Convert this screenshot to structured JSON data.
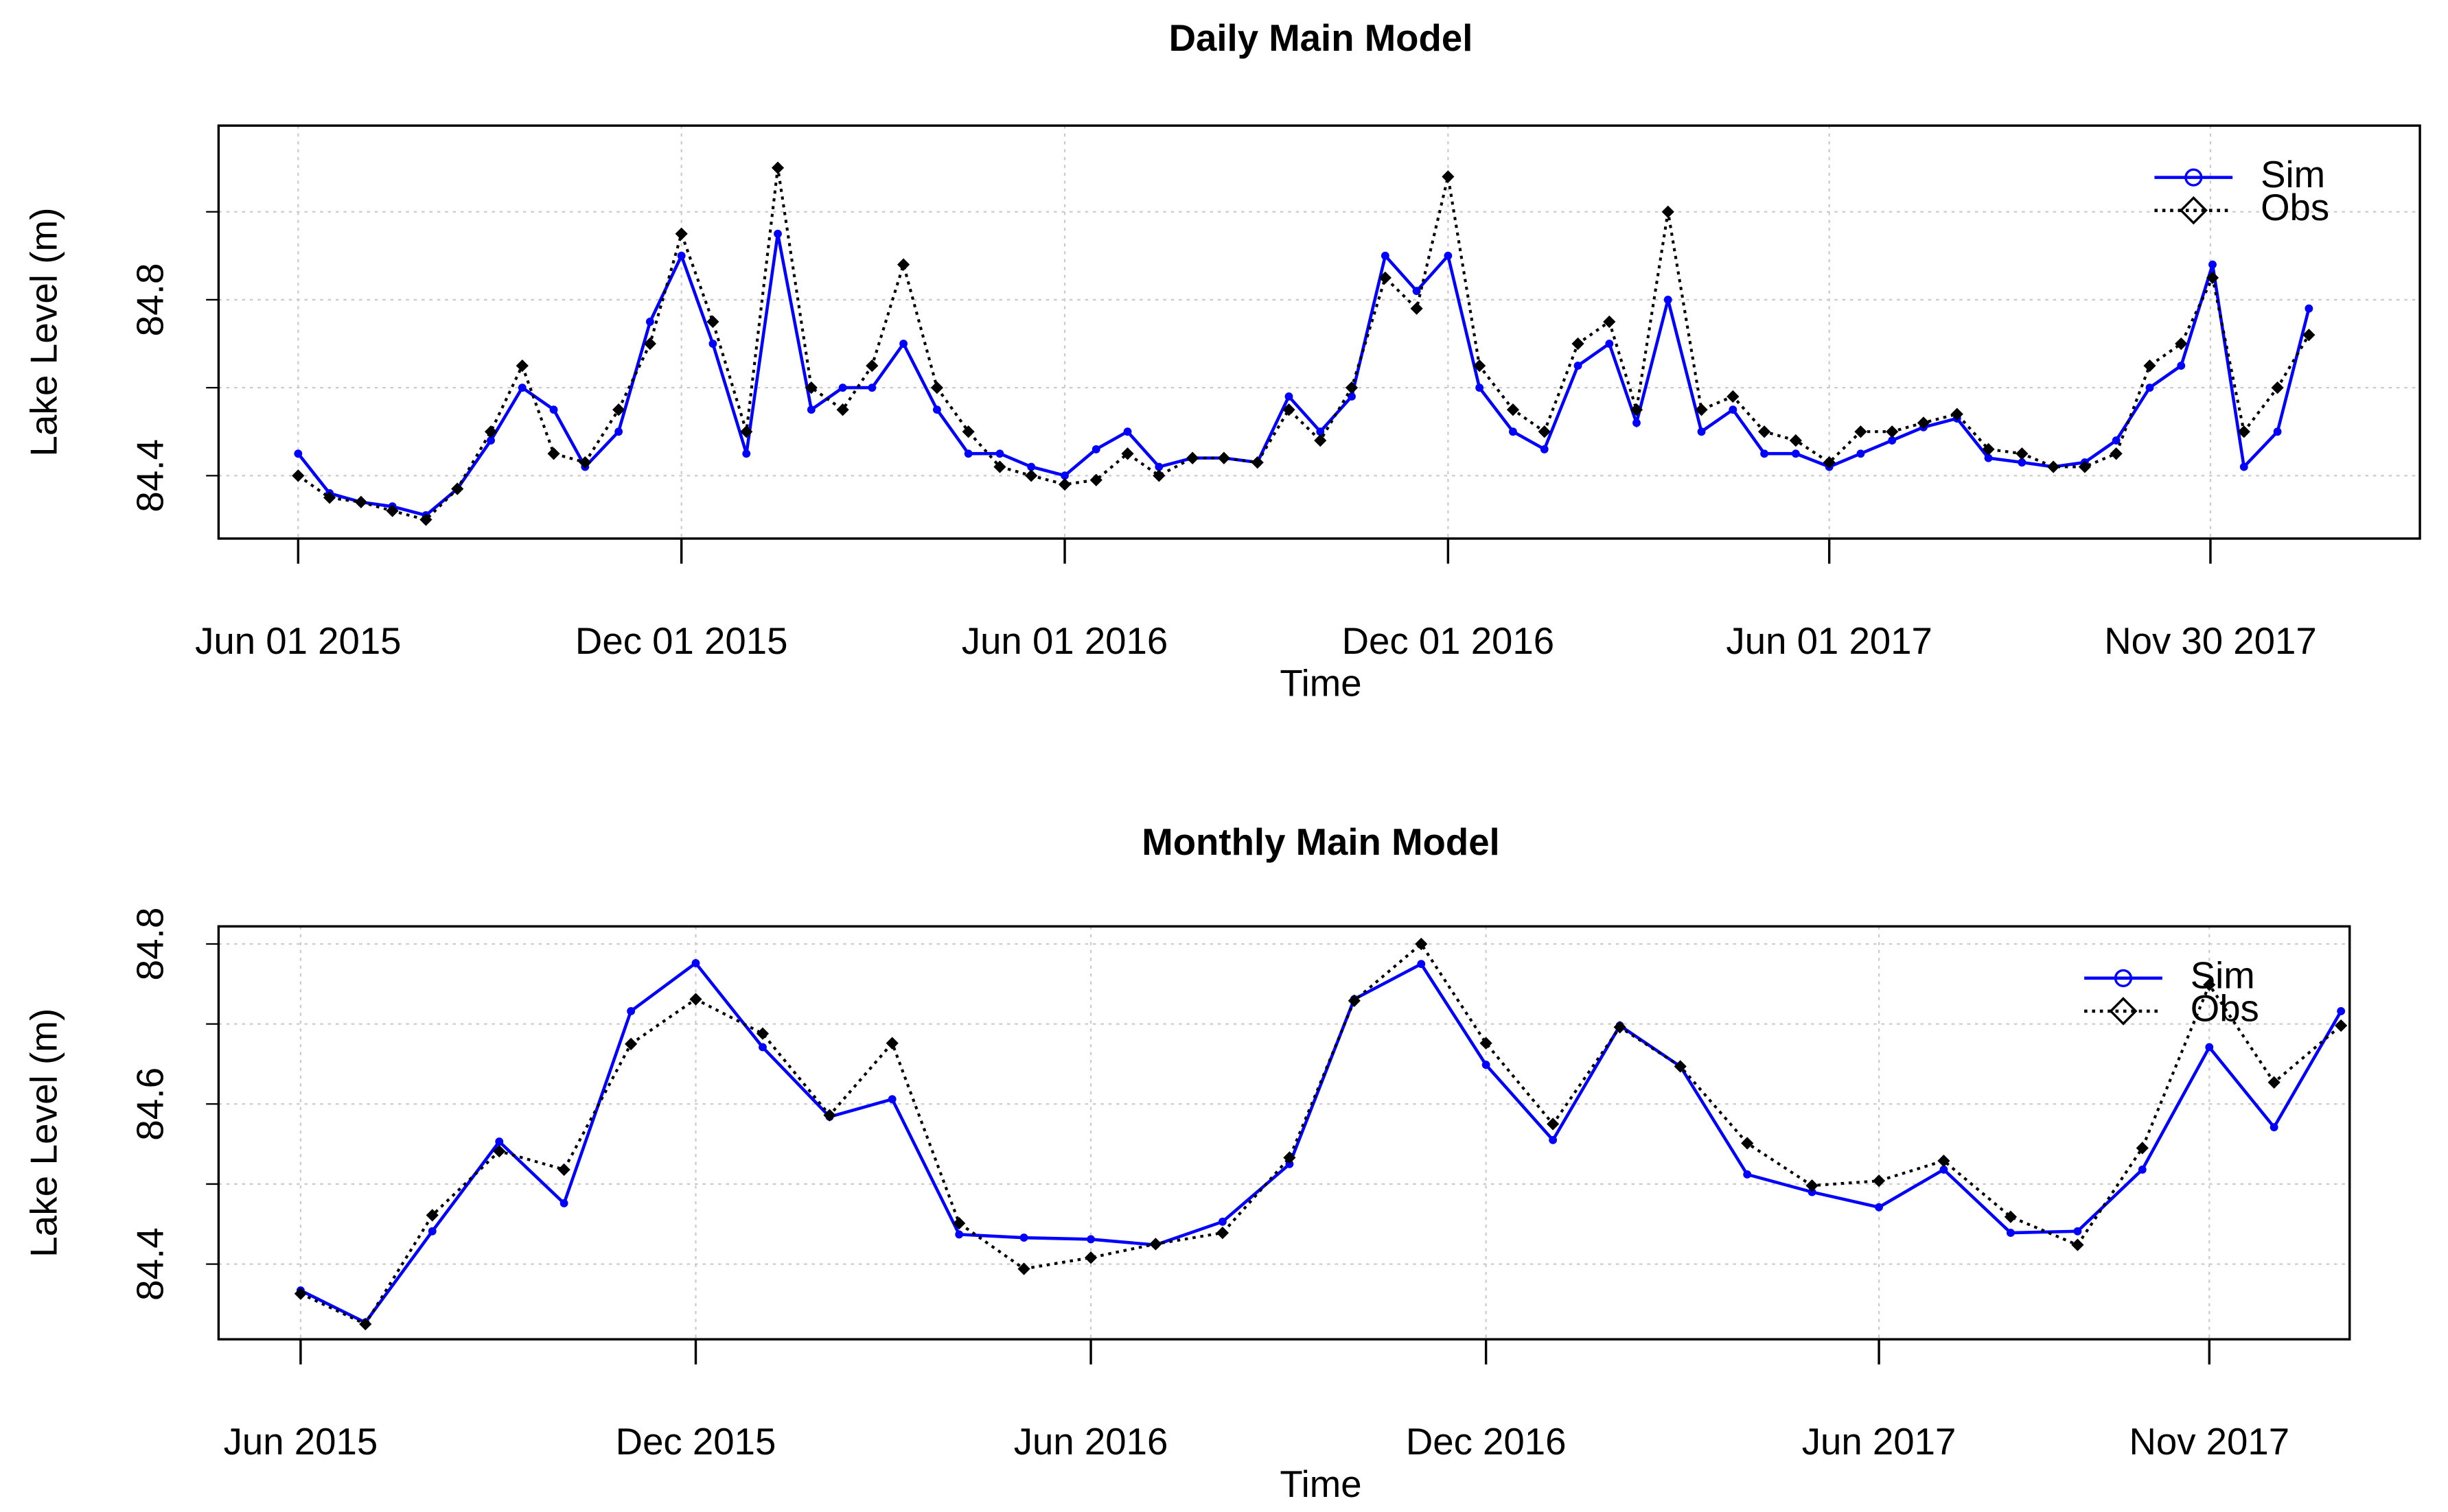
{
  "chart_data": [
    {
      "type": "line",
      "title": "Daily Main Model",
      "x_label": "Time",
      "y_label": "Lake Level (m)",
      "x": [
        "2015-06-01",
        "2015-06-16",
        "2015-07-01",
        "2015-07-16",
        "2015-08-01",
        "2015-08-16",
        "2015-09-01",
        "2015-09-16",
        "2015-10-01",
        "2015-10-16",
        "2015-11-01",
        "2015-11-16",
        "2015-12-01",
        "2015-12-16",
        "2016-01-01",
        "2016-01-16",
        "2016-02-01",
        "2016-02-16",
        "2016-03-01",
        "2016-03-16",
        "2016-04-01",
        "2016-04-16",
        "2016-05-01",
        "2016-05-16",
        "2016-06-01",
        "2016-06-16",
        "2016-07-01",
        "2016-07-16",
        "2016-08-01",
        "2016-08-16",
        "2016-09-01",
        "2016-09-16",
        "2016-10-01",
        "2016-10-16",
        "2016-11-01",
        "2016-11-16",
        "2016-12-01",
        "2016-12-16",
        "2017-01-01",
        "2017-01-16",
        "2017-02-01",
        "2017-02-16",
        "2017-03-01",
        "2017-03-16",
        "2017-04-01",
        "2017-04-16",
        "2017-05-01",
        "2017-05-16",
        "2017-06-01",
        "2017-06-16",
        "2017-07-01",
        "2017-07-16",
        "2017-08-01",
        "2017-08-16",
        "2017-09-01",
        "2017-09-16",
        "2017-10-01",
        "2017-10-16",
        "2017-11-01",
        "2017-11-16",
        "2017-12-01",
        "2017-12-16",
        "2018-01-01",
        "2018-01-16"
      ],
      "series": [
        {
          "name": "Sim",
          "color": "#0000ff",
          "line_style": "solid",
          "marker": "circle",
          "values": [
            84.45,
            84.36,
            84.34,
            84.33,
            84.31,
            84.37,
            84.48,
            84.6,
            84.55,
            84.42,
            84.5,
            84.75,
            84.9,
            84.7,
            84.45,
            84.95,
            84.55,
            84.6,
            84.6,
            84.7,
            84.55,
            84.45,
            84.45,
            84.42,
            84.4,
            84.46,
            84.5,
            84.42,
            84.44,
            84.44,
            84.43,
            84.58,
            84.5,
            84.58,
            84.9,
            84.82,
            84.9,
            84.6,
            84.5,
            84.46,
            84.65,
            84.7,
            84.52,
            84.8,
            84.5,
            84.55,
            84.45,
            84.45,
            84.42,
            84.45,
            84.48,
            84.51,
            84.53,
            84.44,
            84.43,
            84.42,
            84.43,
            84.48,
            84.6,
            84.65,
            84.88,
            84.42,
            84.5,
            84.78
          ]
        },
        {
          "name": "Obs",
          "color": "#000000",
          "line_style": "dotted",
          "marker": "diamond",
          "values": [
            84.4,
            84.35,
            84.34,
            84.32,
            84.3,
            84.37,
            84.5,
            84.65,
            84.45,
            84.43,
            84.55,
            84.7,
            84.95,
            84.75,
            84.5,
            85.1,
            84.6,
            84.55,
            84.65,
            84.88,
            84.6,
            84.5,
            84.42,
            84.4,
            84.38,
            84.39,
            84.45,
            84.4,
            84.44,
            84.44,
            84.43,
            84.55,
            84.48,
            84.6,
            84.85,
            84.78,
            85.08,
            84.65,
            84.55,
            84.5,
            84.7,
            84.75,
            84.55,
            85.0,
            84.55,
            84.58,
            84.5,
            84.48,
            84.43,
            84.5,
            84.5,
            84.52,
            84.54,
            84.46,
            84.45,
            84.42,
            84.42,
            84.45,
            84.65,
            84.7,
            84.85,
            84.5,
            84.6,
            84.72
          ]
        }
      ],
      "xlim": [
        "2015-04-24",
        "2018-03-10"
      ],
      "xticks": [
        {
          "value": "2015-06-01",
          "label": "Jun 01 2015"
        },
        {
          "value": "2015-12-01",
          "label": "Dec 01 2015"
        },
        {
          "value": "2016-06-01",
          "label": "Jun 01 2016"
        },
        {
          "value": "2016-12-01",
          "label": "Dec 01 2016"
        },
        {
          "value": "2017-06-01",
          "label": "Jun 01 2017"
        },
        {
          "value": "2017-11-30",
          "label": "Nov 30 2017"
        }
      ],
      "ylim": [
        84.257,
        85.196
      ],
      "yticks": [
        84.4,
        {
          "value": 84.6,
          "label": null
        },
        84.8,
        {
          "value": 85.0,
          "label": null
        }
      ],
      "grid": true,
      "legend": "top-right"
    },
    {
      "type": "line",
      "title": "Monthly Main Model",
      "x_label": "Time",
      "y_label": "Lake Level (m)",
      "x": [
        "2015-06",
        "2015-07",
        "2015-08",
        "2015-09",
        "2015-10",
        "2015-11",
        "2015-12",
        "2016-01",
        "2016-02",
        "2016-03",
        "2016-04",
        "2016-05",
        "2016-06",
        "2016-07",
        "2016-08",
        "2016-09",
        "2016-10",
        "2016-11",
        "2016-12",
        "2017-01",
        "2017-02",
        "2017-03",
        "2017-04",
        "2017-05",
        "2017-06",
        "2017-07",
        "2017-08",
        "2017-09",
        "2017-10",
        "2017-11",
        "2017-12",
        "2018-01"
      ],
      "series": [
        {
          "name": "Sim",
          "color": "#0000ff",
          "line_style": "solid",
          "marker": "circle",
          "values": [
            84.367,
            84.327,
            84.441,
            84.553,
            84.476,
            84.716,
            84.776,
            84.671,
            84.584,
            84.606,
            84.437,
            84.433,
            84.431,
            84.424,
            84.453,
            84.525,
            84.731,
            84.775,
            84.649,
            84.555,
            84.698,
            84.647,
            84.512,
            84.49,
            84.471,
            84.518,
            84.439,
            84.441,
            84.518,
            84.671,
            84.571,
            84.716
          ]
        },
        {
          "name": "Obs",
          "color": "#000000",
          "line_style": "dotted",
          "marker": "diamond",
          "values": [
            84.363,
            84.325,
            84.461,
            84.541,
            84.518,
            84.675,
            84.731,
            84.688,
            84.586,
            84.676,
            84.451,
            84.394,
            84.408,
            84.425,
            84.439,
            84.533,
            84.729,
            84.8,
            84.676,
            84.575,
            84.696,
            84.647,
            84.551,
            84.498,
            84.504,
            84.529,
            84.459,
            84.424,
            84.545,
            84.749,
            84.627,
            84.698
          ]
        }
      ],
      "xlim": [
        "2015-04-24",
        "2018-01-05"
      ],
      "xticks": [
        {
          "value": "2015-06",
          "label": "Jun 2015"
        },
        {
          "value": "2015-12",
          "label": "Dec 2015"
        },
        {
          "value": "2016-06",
          "label": "Jun 2016"
        },
        {
          "value": "2016-12",
          "label": "Dec 2016"
        },
        {
          "value": "2017-06",
          "label": "Jun 2017"
        },
        {
          "value": "2017-11",
          "label": "Nov 2017"
        }
      ],
      "ylim": [
        84.306,
        84.822
      ],
      "yticks": [
        84.4,
        {
          "value": 84.5,
          "label": null
        },
        84.6,
        {
          "value": 84.7,
          "label": null
        },
        84.8
      ],
      "grid": true,
      "legend": "top-right"
    }
  ]
}
